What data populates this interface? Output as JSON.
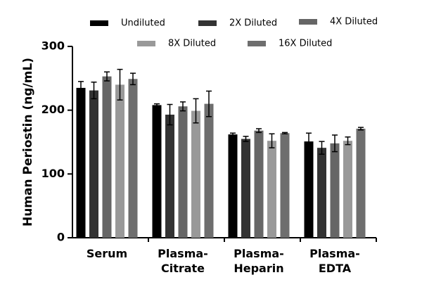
{
  "chart_data": {
    "type": "bar",
    "ylabel": "Human Periostin (ng/mL)",
    "categories": [
      "Serum",
      "Plasma-\nCitrate",
      "Plasma-\nHeparin",
      "Plasma-\nEDTA"
    ],
    "series": [
      {
        "name": "Undiluted",
        "color": "#000000",
        "values": [
          235,
          208,
          162,
          151
        ],
        "errors": [
          10,
          2,
          2,
          13
        ]
      },
      {
        "name": "2X Diluted",
        "color": "#333333",
        "values": [
          231,
          193,
          155,
          141
        ],
        "errors": [
          13,
          16,
          4,
          10
        ]
      },
      {
        "name": "4X Diluted",
        "color": "#666666",
        "values": [
          253,
          206,
          168,
          148
        ],
        "errors": [
          7,
          7,
          3,
          13
        ]
      },
      {
        "name": "8X Diluted",
        "color": "#999999",
        "values": [
          240,
          199,
          152,
          152
        ],
        "errors": [
          24,
          19,
          11,
          6
        ]
      },
      {
        "name": "16X Diluted",
        "color": "#6e6e6e",
        "values": [
          249,
          210,
          164,
          171
        ],
        "errors": [
          9,
          20,
          1,
          2
        ]
      }
    ],
    "ylim": [
      0,
      300
    ],
    "yticks": [
      0,
      100,
      200,
      300
    ]
  }
}
